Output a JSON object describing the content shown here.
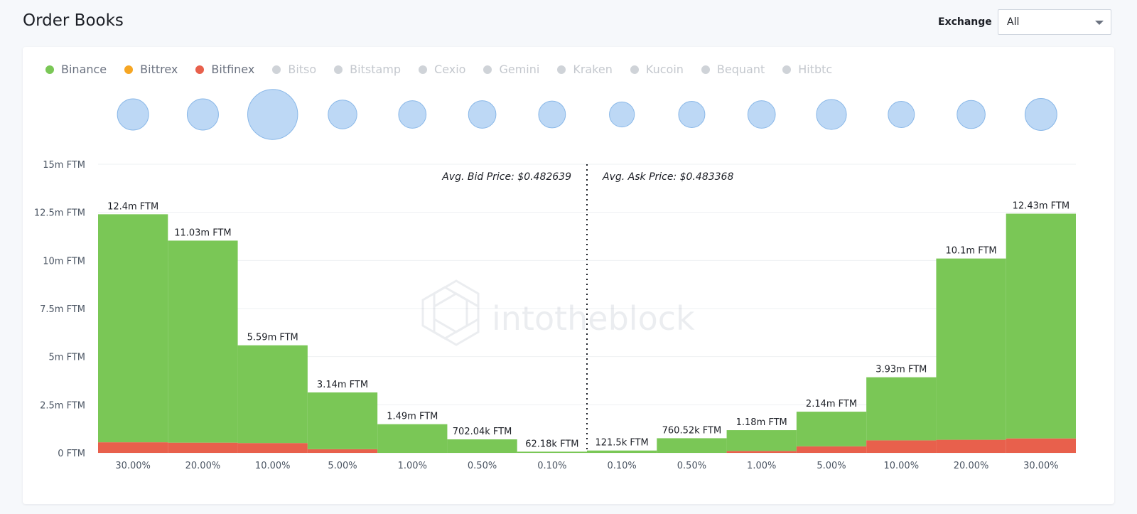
{
  "page": {
    "title": "Order Books"
  },
  "exchange_filter": {
    "label": "Exchange",
    "selected": "All"
  },
  "legend": [
    {
      "name": "Binance",
      "color": "#7ac756",
      "active": true
    },
    {
      "name": "Bittrex",
      "color": "#f6a623",
      "active": true
    },
    {
      "name": "Bitfinex",
      "color": "#e8604c",
      "active": true
    },
    {
      "name": "Bitso",
      "color": "#cfd3d8",
      "active": false
    },
    {
      "name": "Bitstamp",
      "color": "#cfd3d8",
      "active": false
    },
    {
      "name": "Cexio",
      "color": "#cfd3d8",
      "active": false
    },
    {
      "name": "Gemini",
      "color": "#cfd3d8",
      "active": false
    },
    {
      "name": "Kraken",
      "color": "#cfd3d8",
      "active": false
    },
    {
      "name": "Kucoin",
      "color": "#cfd3d8",
      "active": false
    },
    {
      "name": "Bequant",
      "color": "#cfd3d8",
      "active": false
    },
    {
      "name": "Hitbtc",
      "color": "#cfd3d8",
      "active": false
    }
  ],
  "watermark": "intotheblock",
  "chart_data": {
    "type": "bar",
    "title": "",
    "xlabel": "",
    "ylabel": "",
    "ylim": [
      0,
      15000000
    ],
    "y_ticks": [
      {
        "value": 0,
        "label": "0 FTM"
      },
      {
        "value": 2500000,
        "label": "2.5m FTM"
      },
      {
        "value": 5000000,
        "label": "5m FTM"
      },
      {
        "value": 7500000,
        "label": "7.5m FTM"
      },
      {
        "value": 10000000,
        "label": "10m FTM"
      },
      {
        "value": 12500000,
        "label": "12.5m FTM"
      },
      {
        "value": 15000000,
        "label": "15m FTM"
      }
    ],
    "grid": true,
    "legend_position": "top-left",
    "annotations": {
      "bid": "Avg. Bid Price: $0.482639",
      "ask": "Avg. Ask Price: $0.483368"
    },
    "categories": [
      "30.00%",
      "20.00%",
      "10.00%",
      "5.00%",
      "1.00%",
      "0.50%",
      "0.10%",
      "0.10%",
      "0.50%",
      "1.00%",
      "5.00%",
      "10.00%",
      "20.00%",
      "30.00%"
    ],
    "sides": [
      "bid",
      "bid",
      "bid",
      "bid",
      "bid",
      "bid",
      "bid",
      "ask",
      "ask",
      "ask",
      "ask",
      "ask",
      "ask",
      "ask"
    ],
    "totals": [
      12400000,
      11030000,
      5590000,
      3140000,
      1490000,
      702040,
      62180,
      121500,
      760520,
      1180000,
      2140000,
      3930000,
      10100000,
      12430000
    ],
    "total_labels": [
      "12.4m FTM",
      "11.03m FTM",
      "5.59m FTM",
      "3.14m FTM",
      "1.49m FTM",
      "702.04k FTM",
      "62.18k FTM",
      "121.5k FTM",
      "760.52k FTM",
      "1.18m FTM",
      "2.14m FTM",
      "3.93m FTM",
      "10.1m FTM",
      "12.43m FTM"
    ],
    "series": [
      {
        "name": "Binance",
        "color": "#7ac756",
        "values": [
          11850000,
          10500000,
          5080000,
          2950000,
          1490000,
          702040,
          62180,
          121500,
          760520,
          1080000,
          1800000,
          3280000,
          9420000,
          11680000
        ]
      },
      {
        "name": "Bittrex",
        "color": "#f6a623",
        "values": [
          0,
          0,
          0,
          0,
          0,
          0,
          0,
          0,
          0,
          0,
          0,
          0,
          0,
          0
        ]
      },
      {
        "name": "Bitfinex",
        "color": "#e8604c",
        "values": [
          550000,
          530000,
          510000,
          190000,
          0,
          0,
          0,
          0,
          0,
          100000,
          340000,
          650000,
          680000,
          750000
        ]
      }
    ],
    "bubble_sizes": [
      1.0,
      1.0,
      1.6,
      0.92,
      0.88,
      0.88,
      0.86,
      0.8,
      0.84,
      0.88,
      0.96,
      0.84,
      0.9,
      1.02
    ]
  }
}
